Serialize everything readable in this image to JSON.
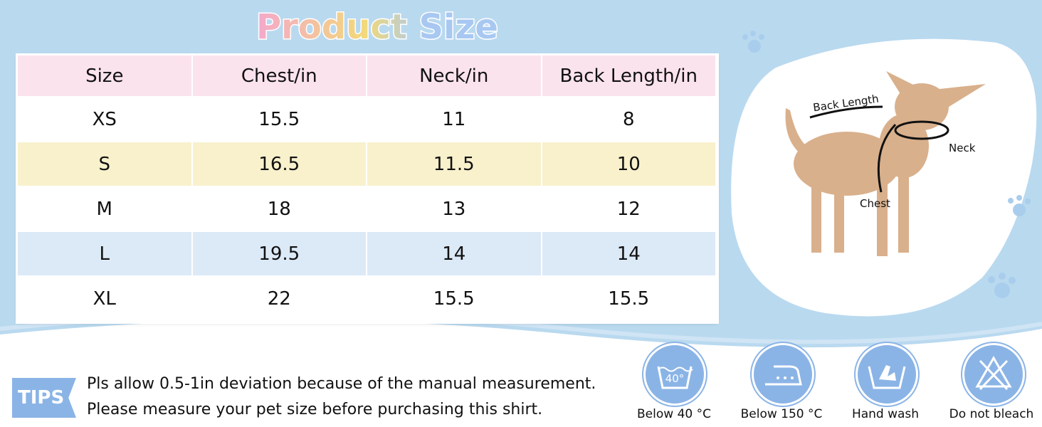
{
  "header": {
    "title": "Product Size"
  },
  "table": {
    "columns": [
      "Size",
      "Chest/in",
      "Neck/in",
      "Back Length/in"
    ],
    "rows": [
      [
        "XS",
        "15.5",
        "11",
        "8"
      ],
      [
        "S",
        "16.5",
        "11.5",
        "10"
      ],
      [
        "M",
        "18",
        "13",
        "12"
      ],
      [
        "L",
        "19.5",
        "14",
        "14"
      ],
      [
        "XL",
        "22",
        "15.5",
        "15.5"
      ]
    ]
  },
  "diagram": {
    "labels": [
      "Back Length",
      "Neck",
      "Chest"
    ]
  },
  "tips": {
    "label": "TIPS",
    "lines": [
      "Pls allow 0.5-1in deviation because of the manual measurement.",
      "Please measure your pet size before purchasing this shirt."
    ]
  },
  "care": [
    {
      "icon_text": "40°",
      "label": "Below 40 °C"
    },
    {
      "label": "Below 150 °C"
    },
    {
      "label": "Hand wash"
    },
    {
      "label": "Do not bleach"
    }
  ]
}
